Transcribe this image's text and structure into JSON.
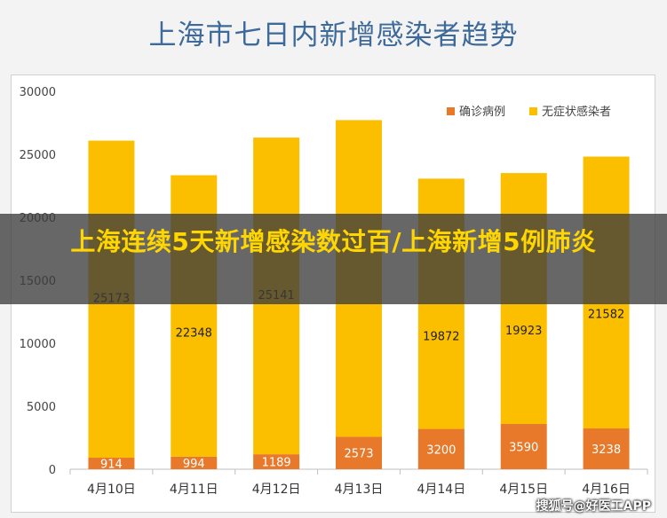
{
  "chart_data": {
    "type": "bar",
    "stacked": true,
    "title": "上海市七日内新增感染者趋势",
    "categories": [
      "4月10日",
      "4月11日",
      "4月12日",
      "4月13日",
      "4月14日",
      "4月15日",
      "4月16日"
    ],
    "series": [
      {
        "name": "确诊病例",
        "color": "#e8792b",
        "values": [
          914,
          994,
          1189,
          2573,
          3200,
          3590,
          3238
        ],
        "labels": [
          "914",
          "994",
          "1189",
          "2573",
          "3200",
          "3590",
          "3238"
        ]
      },
      {
        "name": "无症状感染者",
        "color": "#fbbf00",
        "values": [
          25173,
          22348,
          25141,
          25146,
          19872,
          19923,
          21582
        ],
        "labels": [
          "25173",
          "22348",
          "25141",
          "",
          "19872",
          "19923",
          "21582"
        ]
      }
    ],
    "ylim": [
      0,
      30000
    ],
    "yticks": [
      0,
      5000,
      10000,
      15000,
      20000,
      25000,
      30000
    ],
    "grid": false,
    "legend": "top-right"
  },
  "overlay": {
    "headline": "上海连续5天新增感染数过百/上海新增5例肺炎",
    "watermark": "搜狐号@好医工APP"
  }
}
